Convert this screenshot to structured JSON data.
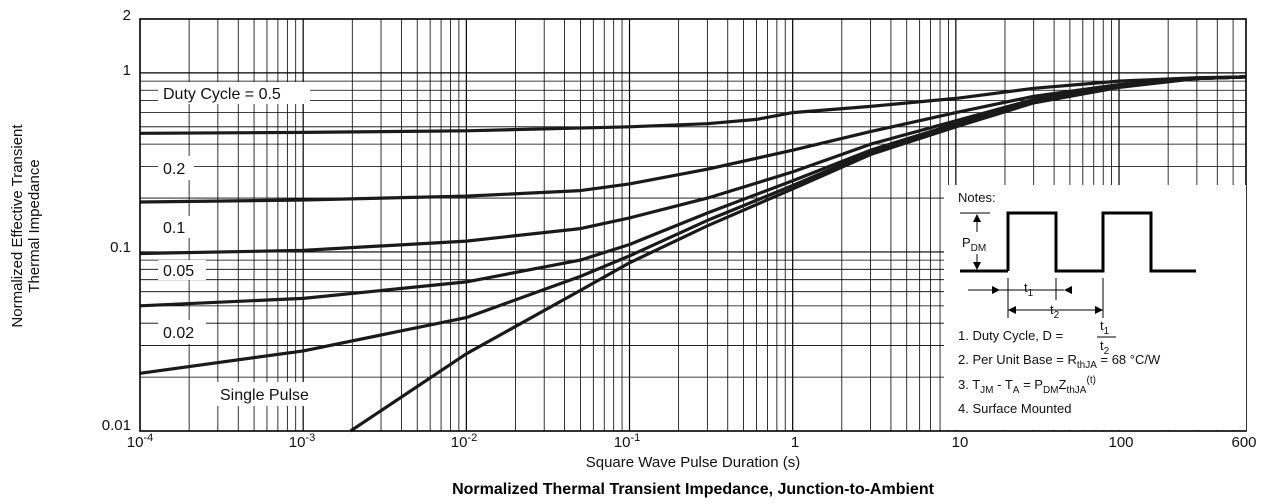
{
  "chart_data": {
    "type": "line",
    "title": "Normalized Thermal Transient Impedance, Junction-to-Ambient",
    "xlabel": "Square Wave Pulse Duration (s)",
    "ylabel_line1": "Normalized Effective Transient",
    "ylabel_line2": "Thermal Impedance",
    "x_scale": "log",
    "y_scale": "log",
    "xlim": [
      0.0001,
      600
    ],
    "ylim": [
      0.01,
      2
    ],
    "grid": true,
    "x_ticks": [
      {
        "base": "10",
        "exp": "-4"
      },
      {
        "base": "10",
        "exp": "-3"
      },
      {
        "base": "10",
        "exp": "-2"
      },
      {
        "base": "10",
        "exp": "-1"
      },
      {
        "base": "1",
        "exp": ""
      },
      {
        "base": "10",
        "exp": ""
      },
      {
        "base": "100",
        "exp": ""
      },
      {
        "base": "600",
        "exp": ""
      }
    ],
    "y_ticks": [
      "0.01",
      "0.1",
      "1",
      "2"
    ],
    "series": [
      {
        "name": "Duty Cycle = 0.5",
        "x": [
          0.0001,
          0.001,
          0.01,
          0.1,
          0.3,
          0.6,
          1,
          3,
          10,
          30,
          100,
          300,
          600
        ],
        "y": [
          0.46,
          0.465,
          0.475,
          0.5,
          0.52,
          0.55,
          0.6,
          0.65,
          0.72,
          0.82,
          0.9,
          0.94,
          0.95
        ]
      },
      {
        "name": "0.2",
        "x": [
          0.0001,
          0.001,
          0.01,
          0.05,
          0.1,
          0.3,
          1,
          3,
          10,
          30,
          100,
          300,
          600
        ],
        "y": [
          0.19,
          0.195,
          0.205,
          0.22,
          0.24,
          0.29,
          0.37,
          0.47,
          0.6,
          0.74,
          0.86,
          0.93,
          0.95
        ]
      },
      {
        "name": "0.1",
        "x": [
          0.0001,
          0.001,
          0.01,
          0.05,
          0.1,
          0.3,
          1,
          3,
          10,
          30,
          100,
          300,
          600
        ],
        "y": [
          0.098,
          0.102,
          0.115,
          0.135,
          0.155,
          0.2,
          0.28,
          0.4,
          0.54,
          0.71,
          0.85,
          0.93,
          0.95
        ]
      },
      {
        "name": "0.05",
        "x": [
          0.0001,
          0.001,
          0.01,
          0.05,
          0.1,
          0.3,
          1,
          3,
          10,
          30,
          100,
          300,
          600
        ],
        "y": [
          0.05,
          0.055,
          0.068,
          0.09,
          0.11,
          0.165,
          0.25,
          0.37,
          0.52,
          0.7,
          0.84,
          0.93,
          0.95
        ]
      },
      {
        "name": "0.02",
        "x": [
          0.0001,
          0.001,
          0.01,
          0.05,
          0.1,
          0.3,
          1,
          3,
          10,
          30,
          100,
          300,
          600
        ],
        "y": [
          0.021,
          0.028,
          0.043,
          0.073,
          0.095,
          0.15,
          0.235,
          0.36,
          0.51,
          0.69,
          0.84,
          0.93,
          0.95
        ]
      },
      {
        "name": "Single Pulse",
        "x": [
          0.00195,
          0.01,
          0.05,
          0.1,
          0.3,
          1,
          3,
          10,
          30,
          100,
          300,
          600
        ],
        "y": [
          0.01,
          0.027,
          0.061,
          0.087,
          0.14,
          0.225,
          0.35,
          0.5,
          0.68,
          0.83,
          0.93,
          0.95
        ]
      }
    ],
    "notes": {
      "heading": "Notes:",
      "pdm_main": "P",
      "pdm_sub": "DM",
      "t1_main": "t",
      "t1_sub": "1",
      "t2_main": "t",
      "t2_sub": "2",
      "note1": "1. Duty Cycle, D =",
      "note1_num_main": "t",
      "note1_num_sub": "1",
      "note1_den_main": "t",
      "note1_den_sub": "2",
      "note2_prefix": "2. Per Unit Base = R",
      "note2_sub": "thJA",
      "note2_suffix": " = 68 °C/W",
      "note3_a": "3. T",
      "note3_a_sub": "JM",
      "note3_b": " - T",
      "note3_b_sub": "A",
      "note3_c": " = P",
      "note3_c_sub": "DM",
      "note3_d": "Z",
      "note3_d_sub": "thJA",
      "note3_e_sup": "(t)",
      "note4": "4. Surface Mounted"
    }
  }
}
